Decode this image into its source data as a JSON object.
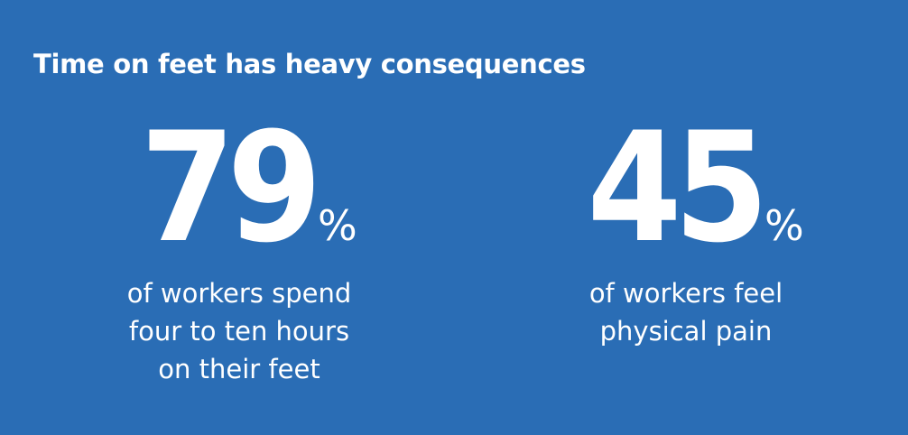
{
  "title": "Time on feet has heavy consequences",
  "stats": [
    {
      "value": "79",
      "unit": "%",
      "description": [
        "of workers spend",
        "four to ten hours",
        "on their feet"
      ]
    },
    {
      "value": "45",
      "unit": "%",
      "description": [
        "of workers feel",
        "physical pain"
      ]
    }
  ]
}
